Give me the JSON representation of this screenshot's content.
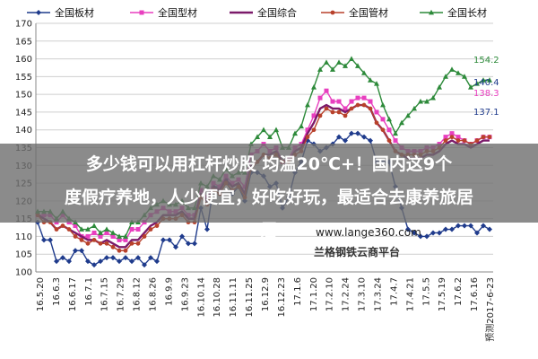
{
  "chart_data": {
    "type": "line",
    "legend_position": "top",
    "y_ticks": [
      "100",
      "105",
      "110",
      "115",
      "120",
      "125",
      "130",
      "135",
      "140",
      "145",
      "150",
      "155",
      "160",
      "165",
      "170"
    ],
    "ylim": [
      100,
      170
    ],
    "grid": true,
    "x_tick_labels": [
      "16.5.20",
      "16.6.3",
      "16.6.17",
      "16.7.1",
      "16.7.15",
      "16.7.29",
      "16.8.12",
      "16.8.26",
      "16.9.9",
      "16.9.23",
      "16.10.14",
      "16.10.28",
      "16.11.11",
      "16.11.25",
      "16.12.9",
      "16.12.23",
      "17.1.6",
      "17.1.20",
      "17.2.10",
      "17.2.24",
      "17.3.10",
      "17.3.24",
      "17.4.7",
      "17.4.21",
      "17.5.5",
      "17.5.19",
      "17.6.2",
      "17.6.16",
      "预测2017-6-23"
    ],
    "series": [
      {
        "name": "全国板材",
        "color": "#1f3b8c",
        "marker": "diamond",
        "values": [
          114,
          109,
          109,
          103,
          104,
          103,
          106,
          106,
          103,
          102,
          103,
          104,
          104,
          103,
          104,
          103,
          104,
          102,
          104,
          103,
          109,
          109,
          107,
          110,
          108,
          108,
          118,
          112,
          124,
          124,
          126,
          122,
          124,
          120,
          128,
          128,
          127,
          124,
          125,
          118,
          121,
          128,
          131,
          137,
          136,
          134,
          135,
          136,
          138,
          137,
          139,
          139,
          138,
          137,
          131,
          131,
          131,
          124,
          118,
          112,
          111,
          110,
          110,
          111,
          111,
          112,
          112,
          113,
          113,
          113,
          111,
          113,
          112
        ]
      },
      {
        "name": "全国型材",
        "color": "#e83fbf",
        "marker": "square",
        "values": [
          116,
          116,
          116,
          114,
          116,
          114,
          113,
          110,
          110,
          111,
          110,
          111,
          110,
          109,
          109,
          112,
          112,
          114,
          116,
          117,
          118,
          117,
          117,
          118,
          116,
          116,
          123,
          121,
          125,
          124,
          127,
          125,
          126,
          124,
          133,
          134,
          136,
          134,
          135,
          131,
          132,
          135,
          136,
          140,
          144,
          149,
          151,
          148,
          148,
          146,
          148,
          149,
          149,
          148,
          145,
          143,
          140,
          137,
          135,
          134,
          134,
          134,
          135,
          135,
          136,
          138,
          139,
          138,
          137,
          136,
          137,
          138,
          138
        ]
      },
      {
        "name": "全国综合",
        "color": "#7b1a6a",
        "marker": "none",
        "values": [
          116,
          115,
          114,
          112,
          113,
          112,
          111,
          110,
          109,
          109,
          108,
          109,
          108,
          107,
          107,
          109,
          109,
          111,
          113,
          114,
          116,
          116,
          116,
          117,
          115,
          115,
          122,
          120,
          124,
          123,
          126,
          124,
          125,
          122,
          130,
          131,
          133,
          133,
          134,
          131,
          131,
          134,
          135,
          139,
          142,
          146,
          147,
          146,
          146,
          145,
          146,
          147,
          147,
          146,
          142,
          140,
          137,
          134,
          133,
          132,
          132,
          132,
          133,
          133,
          134,
          136,
          137,
          136,
          136,
          135,
          136,
          137,
          137
        ]
      },
      {
        "name": "全国管材",
        "color": "#b8412b",
        "marker": "circle",
        "values": [
          116,
          114,
          114,
          112,
          113,
          112,
          110,
          109,
          108,
          109,
          108,
          108,
          107,
          106,
          106,
          108,
          108,
          110,
          112,
          113,
          115,
          115,
          115,
          116,
          114,
          114,
          121,
          119,
          123,
          122,
          125,
          123,
          124,
          121,
          129,
          131,
          133,
          132,
          133,
          131,
          131,
          133,
          134,
          138,
          140,
          144,
          146,
          145,
          145,
          144,
          146,
          147,
          147,
          146,
          142,
          140,
          137,
          134,
          133,
          133,
          133,
          133,
          134,
          134,
          135,
          137,
          138,
          137,
          137,
          136,
          137,
          138,
          138
        ]
      },
      {
        "name": "全国长材",
        "color": "#2d8a3a",
        "marker": "triangle",
        "values": [
          117,
          117,
          117,
          115,
          117,
          115,
          114,
          112,
          112,
          113,
          111,
          112,
          111,
          110,
          110,
          114,
          114,
          116,
          118,
          119,
          120,
          119,
          119,
          120,
          118,
          118,
          125,
          124,
          127,
          126,
          129,
          127,
          128,
          128,
          136,
          138,
          140,
          138,
          140,
          135,
          135,
          139,
          141,
          147,
          152,
          157,
          159,
          157,
          159,
          158,
          160,
          158,
          156,
          154,
          153,
          147,
          143,
          139,
          142,
          144,
          146,
          148,
          148,
          149,
          152,
          155,
          157,
          156,
          155,
          152,
          153,
          154,
          154
        ]
      }
    ],
    "end_labels": [
      "154.2",
      "140.4",
      "138.3",
      "137.1"
    ]
  },
  "overlay": {
    "headline_line1": "多少钱可以用杠杆炒股 均温20℃+！国内这9个",
    "headline_line2": "度假疗养地，人少便宜，好吃好玩，最适合去康养旅居",
    "headline_line3": "居",
    "watermark_url": "www.lange360.com",
    "watermark_name": "兰格钢铁云商平台"
  }
}
